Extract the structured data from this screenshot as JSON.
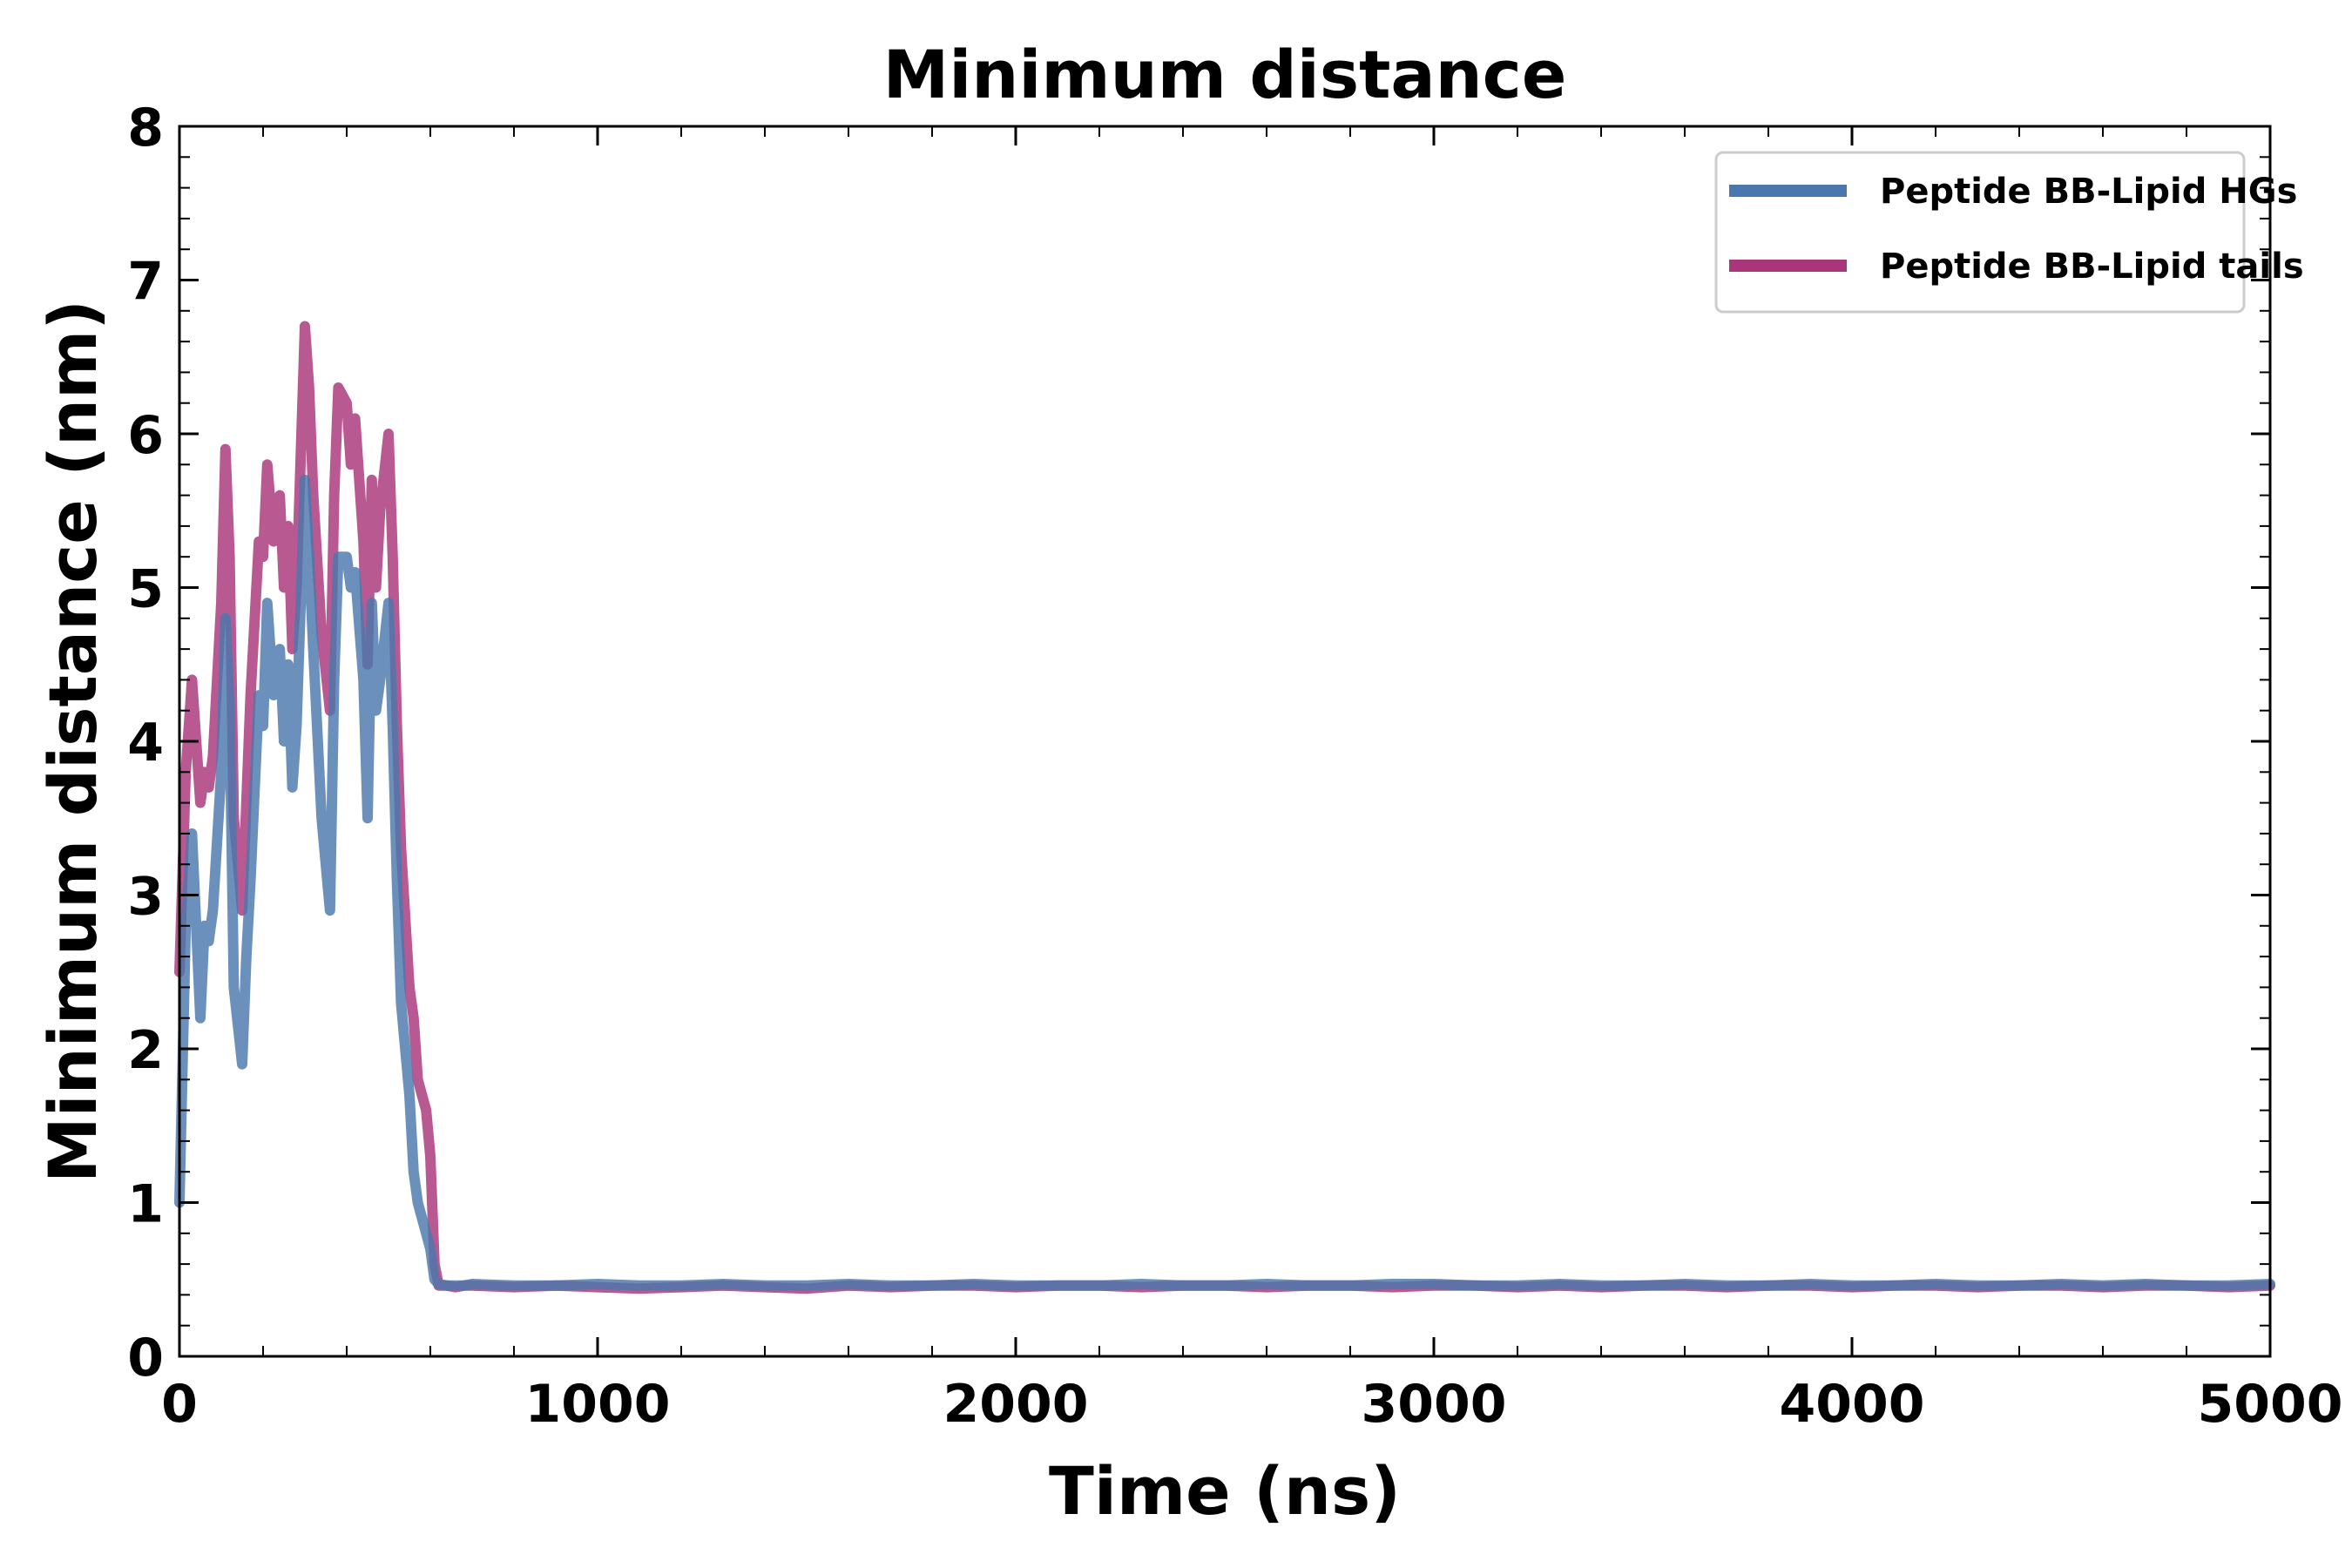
{
  "chart_data": {
    "type": "line",
    "title": "Minimum distance",
    "xlabel": "Time (ns)",
    "ylabel": "Minimum distance (nm)",
    "xlim": [
      0,
      5000
    ],
    "ylim": [
      0,
      8
    ],
    "xticks": [
      0,
      1000,
      2000,
      3000,
      4000,
      5000
    ],
    "yticks": [
      0,
      1,
      2,
      3,
      4,
      5,
      6,
      7,
      8
    ],
    "xtick_labels": [
      "0",
      "1000",
      "2000",
      "3000",
      "4000",
      "5000"
    ],
    "ytick_labels": [
      "0",
      "1",
      "2",
      "3",
      "4",
      "5",
      "6",
      "7",
      "8"
    ],
    "grid": false,
    "legend_position": "top-right",
    "series": [
      {
        "name": "Peptide BB-Lipid HGs",
        "color": "#4a77ad",
        "x": [
          0,
          15,
          30,
          50,
          60,
          70,
          80,
          100,
          110,
          120,
          130,
          150,
          160,
          170,
          190,
          200,
          210,
          225,
          240,
          250,
          260,
          270,
          280,
          300,
          310,
          320,
          340,
          360,
          370,
          380,
          400,
          410,
          420,
          440,
          450,
          460,
          470,
          480,
          500,
          510,
          520,
          530,
          550,
          560,
          570,
          580,
          590,
          600,
          610,
          620,
          640,
          660,
          680,
          700,
          800,
          900,
          1000,
          1100,
          1200,
          1300,
          1400,
          1500,
          1600,
          1700,
          1800,
          1900,
          2000,
          2100,
          2200,
          2300,
          2400,
          2500,
          2600,
          2700,
          2800,
          2900,
          3000,
          3100,
          3200,
          3300,
          3400,
          3500,
          3600,
          3700,
          3800,
          3900,
          4000,
          4100,
          4200,
          4300,
          4400,
          4500,
          4600,
          4700,
          4800,
          4900,
          5000
        ],
        "values": [
          1.0,
          2.8,
          3.4,
          2.2,
          2.8,
          2.7,
          2.9,
          3.8,
          4.8,
          4.2,
          2.4,
          1.9,
          2.6,
          3.1,
          4.3,
          4.1,
          4.9,
          4.3,
          4.6,
          4.0,
          4.5,
          3.7,
          4.1,
          5.7,
          5.2,
          4.6,
          3.5,
          2.9,
          4.4,
          5.2,
          5.2,
          5.0,
          5.1,
          4.4,
          3.5,
          4.9,
          4.2,
          4.4,
          4.9,
          4.1,
          3.1,
          2.3,
          1.7,
          1.2,
          1.0,
          0.9,
          0.8,
          0.7,
          0.5,
          0.47,
          0.46,
          0.46,
          0.46,
          0.47,
          0.46,
          0.46,
          0.47,
          0.46,
          0.46,
          0.47,
          0.46,
          0.46,
          0.47,
          0.46,
          0.46,
          0.47,
          0.46,
          0.46,
          0.46,
          0.47,
          0.46,
          0.46,
          0.47,
          0.46,
          0.46,
          0.47,
          0.47,
          0.46,
          0.46,
          0.47,
          0.46,
          0.46,
          0.47,
          0.46,
          0.46,
          0.47,
          0.46,
          0.46,
          0.47,
          0.46,
          0.46,
          0.47,
          0.46,
          0.47,
          0.46,
          0.46,
          0.47
        ]
      },
      {
        "name": "Peptide BB-Lipid tails",
        "color": "#a83679",
        "x": [
          0,
          15,
          30,
          50,
          60,
          70,
          80,
          100,
          110,
          120,
          130,
          150,
          160,
          170,
          190,
          200,
          210,
          225,
          240,
          250,
          260,
          270,
          280,
          300,
          310,
          320,
          340,
          360,
          370,
          380,
          400,
          410,
          420,
          440,
          450,
          460,
          470,
          480,
          500,
          510,
          520,
          530,
          550,
          560,
          570,
          580,
          590,
          600,
          610,
          620,
          640,
          660,
          680,
          700,
          800,
          900,
          1000,
          1100,
          1200,
          1300,
          1400,
          1500,
          1600,
          1700,
          1800,
          1900,
          2000,
          2100,
          2200,
          2300,
          2400,
          2500,
          2600,
          2700,
          2800,
          2900,
          3000,
          3100,
          3200,
          3300,
          3400,
          3500,
          3600,
          3700,
          3800,
          3900,
          4000,
          4100,
          4200,
          4300,
          4400,
          4500,
          4600,
          4700,
          4800,
          4900,
          5000
        ],
        "values": [
          2.5,
          3.8,
          4.4,
          3.6,
          3.8,
          3.7,
          3.9,
          4.9,
          5.9,
          5.2,
          3.5,
          2.9,
          3.6,
          4.3,
          5.3,
          5.2,
          5.8,
          5.3,
          5.6,
          5.0,
          5.4,
          4.6,
          5.0,
          6.7,
          6.3,
          5.6,
          4.7,
          4.2,
          5.6,
          6.3,
          6.2,
          5.8,
          6.1,
          5.3,
          4.5,
          5.7,
          5.0,
          5.5,
          6.0,
          5.2,
          4.1,
          3.3,
          2.4,
          2.2,
          1.8,
          1.7,
          1.6,
          1.3,
          0.6,
          0.46,
          0.46,
          0.45,
          0.46,
          0.46,
          0.45,
          0.46,
          0.45,
          0.44,
          0.45,
          0.46,
          0.45,
          0.44,
          0.46,
          0.45,
          0.46,
          0.46,
          0.45,
          0.46,
          0.46,
          0.45,
          0.46,
          0.46,
          0.45,
          0.46,
          0.46,
          0.45,
          0.46,
          0.46,
          0.45,
          0.46,
          0.45,
          0.46,
          0.46,
          0.45,
          0.46,
          0.46,
          0.45,
          0.46,
          0.46,
          0.45,
          0.46,
          0.46,
          0.45,
          0.46,
          0.46,
          0.45,
          0.46
        ]
      }
    ]
  }
}
